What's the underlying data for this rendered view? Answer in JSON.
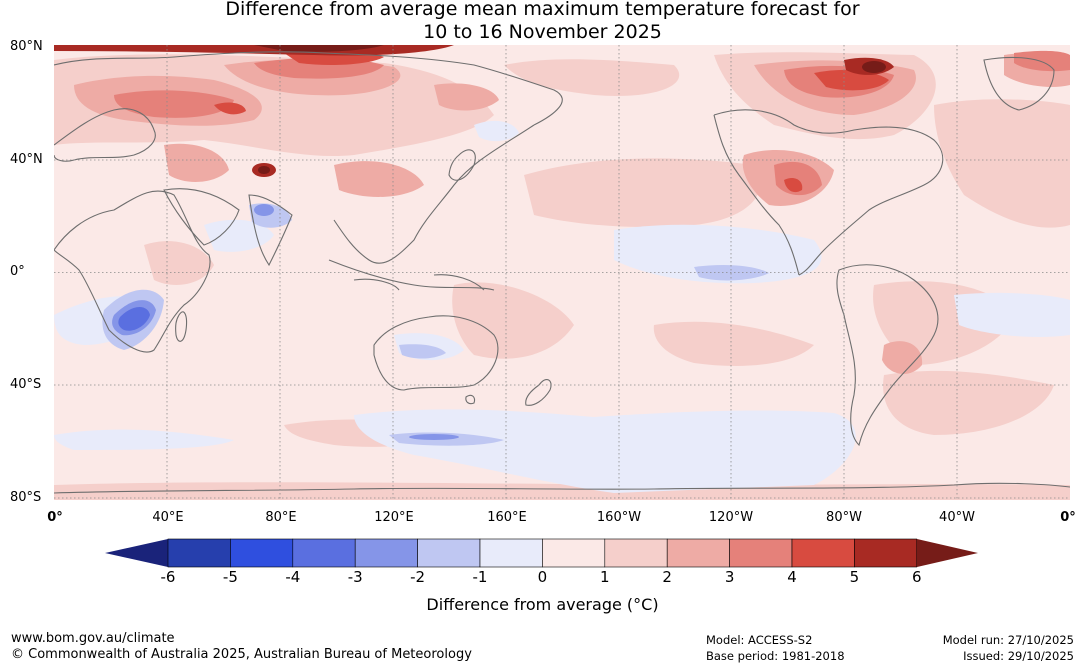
{
  "title": {
    "line1": "Difference from average mean maximum temperature forecast for",
    "line2": "10 to 16 November 2025"
  },
  "latitude_labels": [
    "80°N",
    "40°N",
    "0°",
    "40°S",
    "80°S"
  ],
  "longitude_labels": [
    "0°",
    "40°E",
    "80°E",
    "120°E",
    "160°E",
    "160°W",
    "120°W",
    "80°W",
    "40°W",
    "0°"
  ],
  "colorbar": {
    "tick_labels": [
      "-6",
      "-5",
      "-4",
      "-3",
      "-2",
      "-1",
      "0",
      "1",
      "2",
      "3",
      "4",
      "5",
      "6"
    ],
    "colors": {
      "below_min": "#1a237a",
      "bins": [
        "#263fad",
        "#2f4fdf",
        "#5a6fe0",
        "#8595e8",
        "#bfc7f2",
        "#e8ebfa",
        "#fbe9e7",
        "#f5cfcb",
        "#eeaba5",
        "#e5817a",
        "#d84b40",
        "#a82a23"
      ],
      "above_max": "#761c18"
    },
    "label": "Difference from average (°C)"
  },
  "footer": {
    "url": "www.bom.gov.au/climate",
    "copyright": "© Commonwealth of Australia 2025, Australian Bureau of Meteorology",
    "model": "Model: ACCESS-S2",
    "base_period": "Base period: 1981-2018",
    "model_run": "Model run: 27/10/2025",
    "issued": "Issued: 29/10/2025"
  }
}
